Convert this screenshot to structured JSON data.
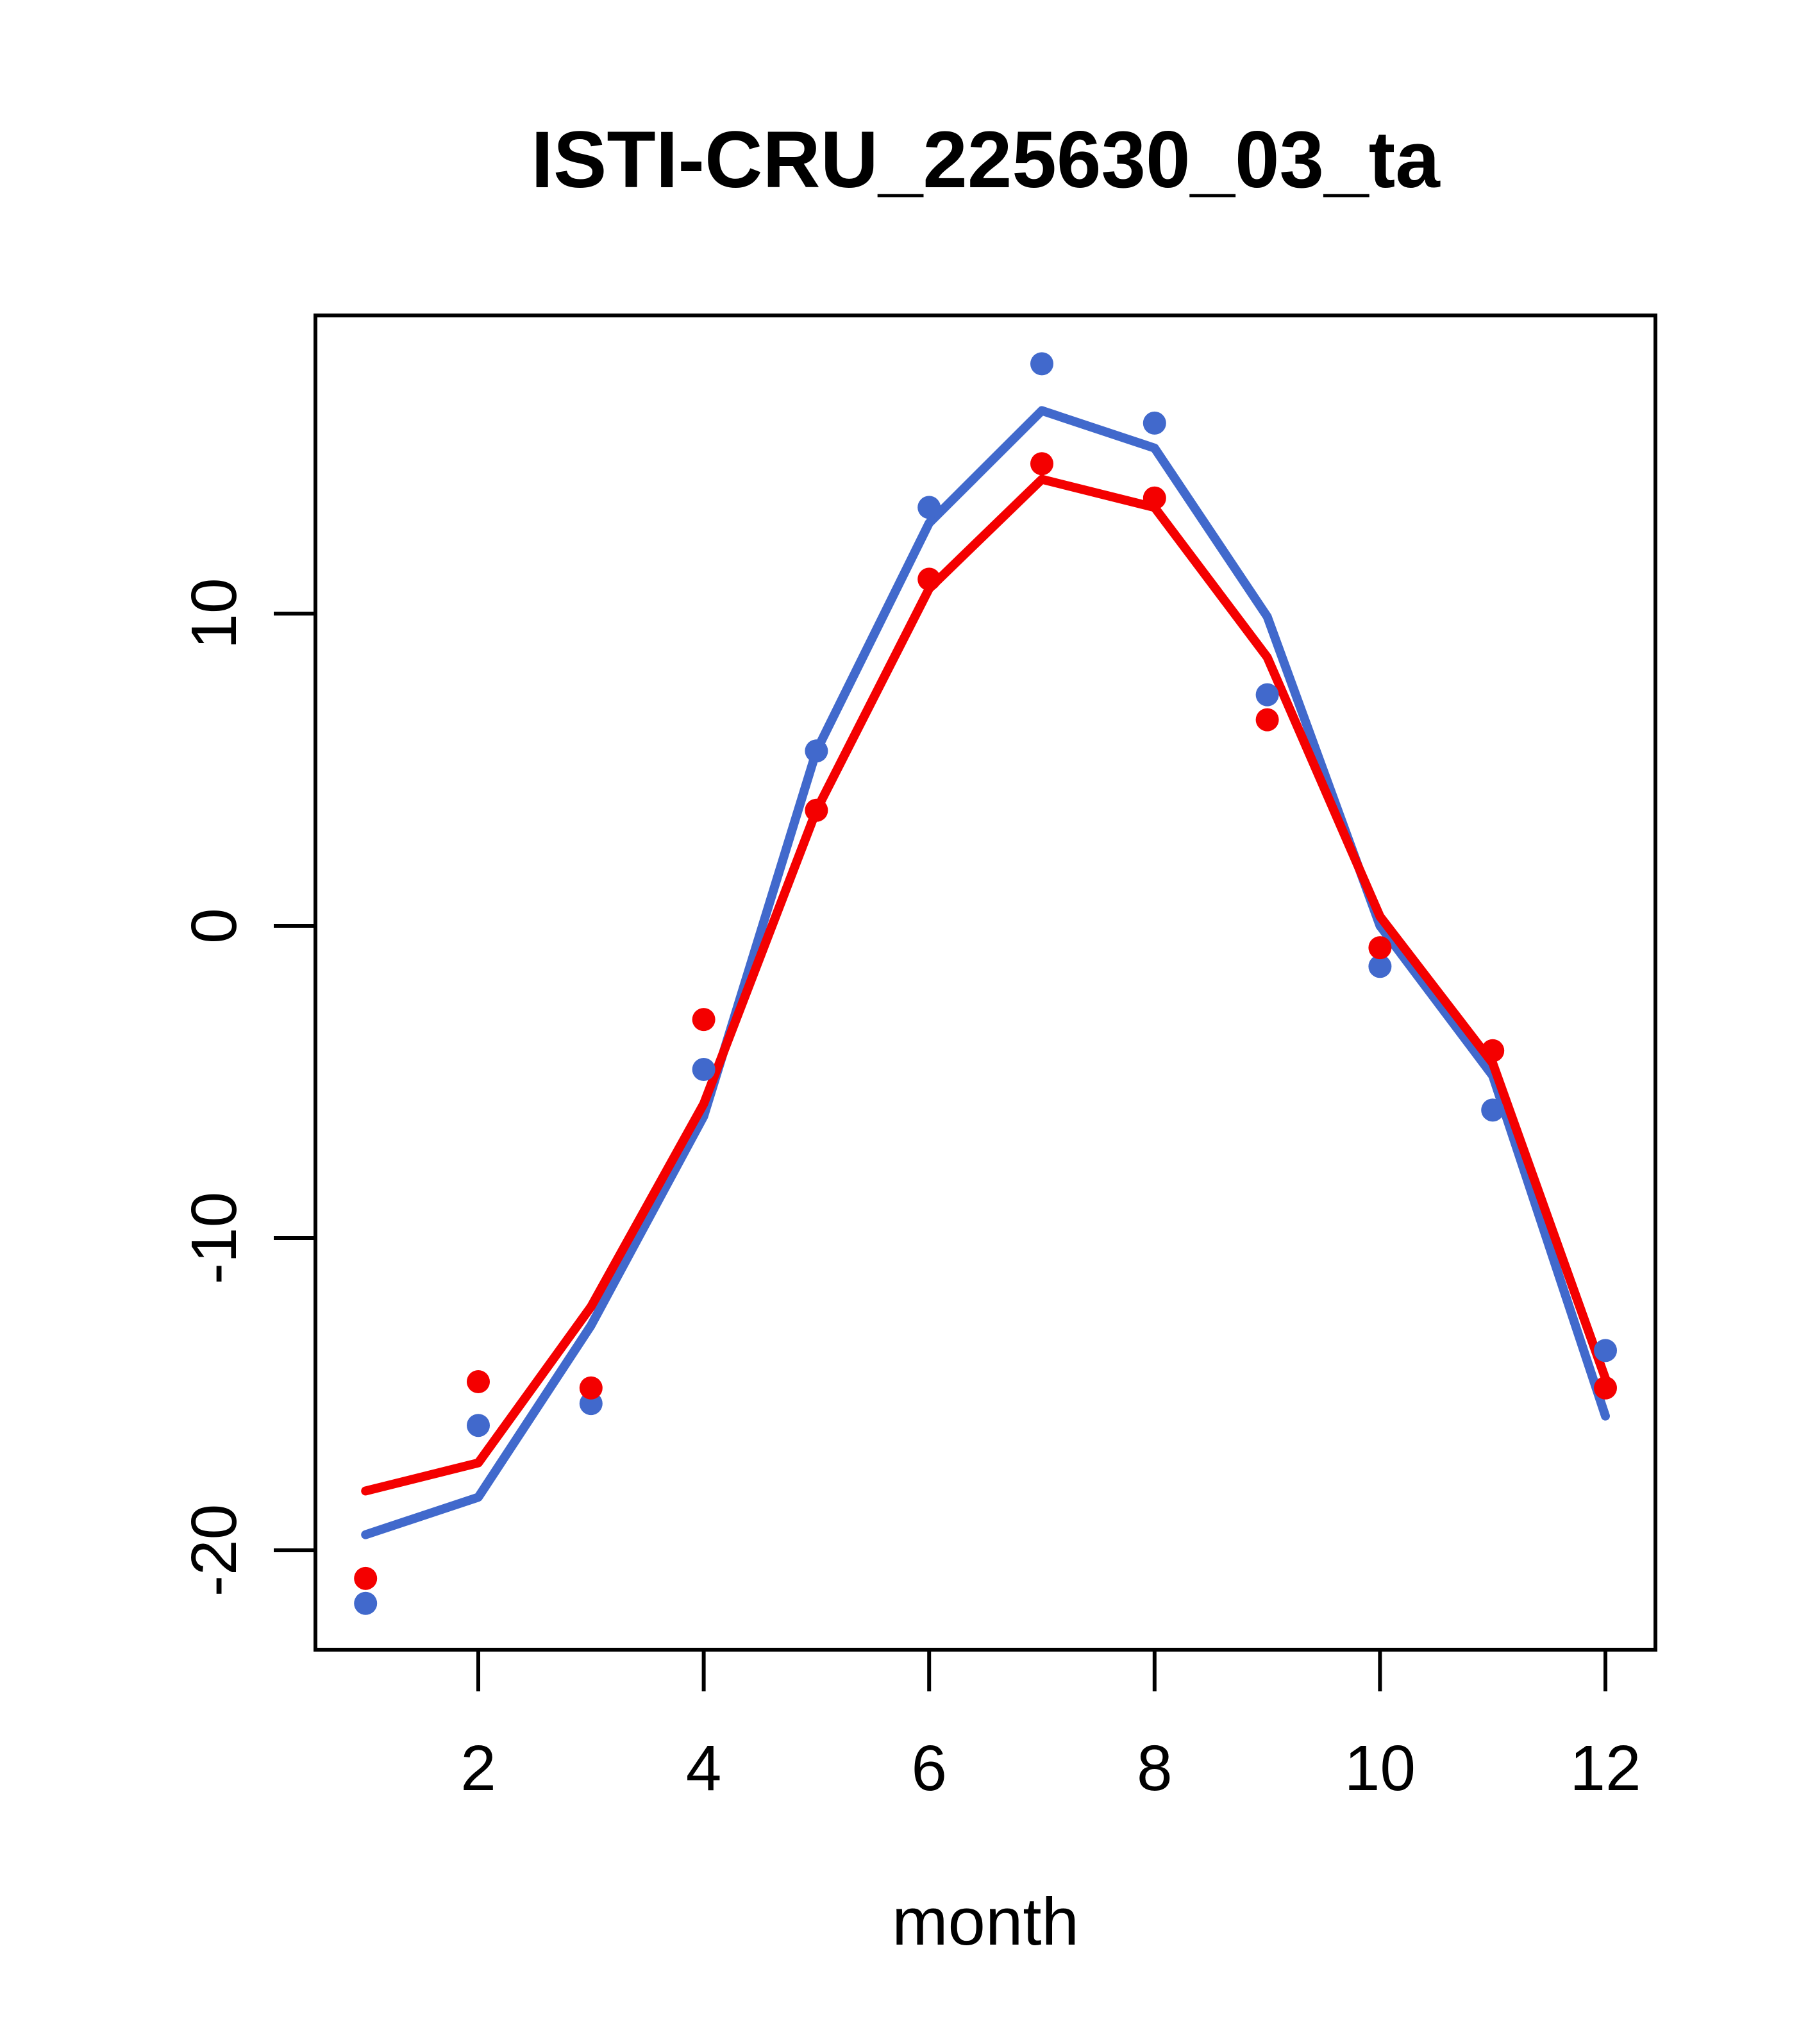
{
  "chart_data": {
    "type": "line",
    "title": "ISTI-CRU_225630_03_ta",
    "xlabel": "month",
    "ylabel": "",
    "x": [
      1,
      2,
      3,
      4,
      5,
      6,
      7,
      8,
      9,
      10,
      11,
      12
    ],
    "xticks": [
      2,
      4,
      6,
      8,
      10,
      12
    ],
    "yticks": [
      10,
      0,
      -10,
      -20
    ],
    "xlim": [
      0.56,
      12.44
    ],
    "ylim": [
      -23.2,
      19.6
    ],
    "grid": false,
    "legend": null,
    "series": [
      {
        "name": "blue-line",
        "kind": "line",
        "color": "#4169CC",
        "values": [
          -19.5,
          -18.3,
          -12.8,
          -6.1,
          5.6,
          12.9,
          16.5,
          15.3,
          9.9,
          0.0,
          -4.8,
          -15.7
        ]
      },
      {
        "name": "red-line",
        "kind": "line",
        "color": "#F40000",
        "values": [
          -18.1,
          -17.2,
          -12.2,
          -5.7,
          3.7,
          10.8,
          14.3,
          13.4,
          8.6,
          0.3,
          -4.4,
          -14.5
        ]
      },
      {
        "name": "blue-points",
        "kind": "scatter",
        "color": "#4169CC",
        "values": [
          -21.7,
          -16.0,
          -15.3,
          -4.6,
          5.6,
          13.4,
          18.0,
          16.1,
          7.4,
          -1.3,
          -5.9,
          -13.6
        ]
      },
      {
        "name": "red-points",
        "kind": "scatter",
        "color": "#F40000",
        "values": [
          -20.9,
          -14.6,
          -14.8,
          -3.0,
          3.7,
          11.1,
          14.8,
          13.7,
          6.6,
          -0.7,
          -4.0,
          -14.8
        ]
      }
    ],
    "frame_color": "#000000"
  }
}
